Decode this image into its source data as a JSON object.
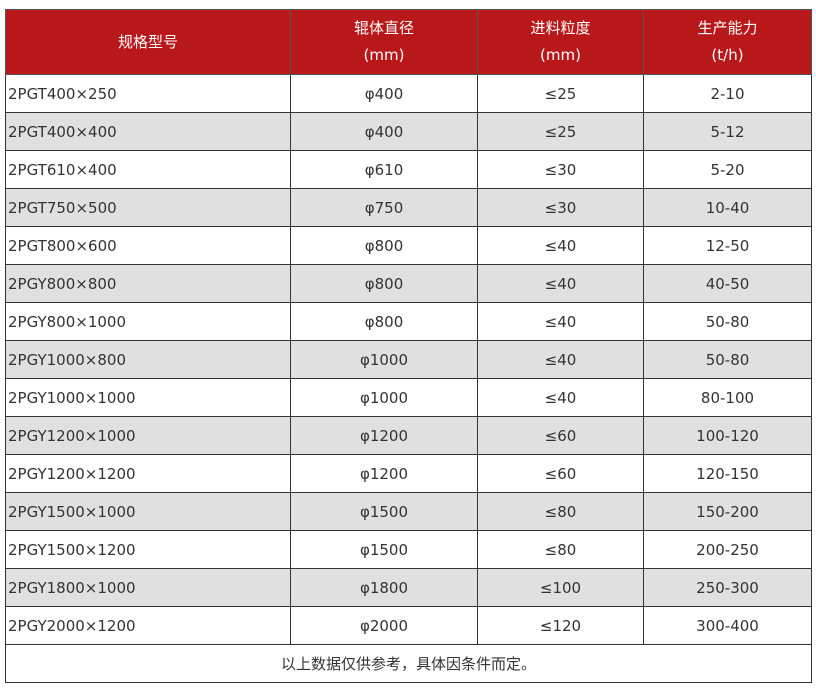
{
  "header": {
    "model": "规格型号",
    "roller_diameter": "辊体直径",
    "roller_unit": "(mm)",
    "feed_size": "进料粒度",
    "feed_unit": "(mm)",
    "capacity": "生产能力",
    "capacity_unit": "(t/h)"
  },
  "rows": [
    [
      "2PGT400×250",
      "φ400",
      "≤25",
      "2-10"
    ],
    [
      "2PGT400×400",
      "φ400",
      "≤25",
      "5-12"
    ],
    [
      "2PGT610×400",
      "φ610",
      "≤30",
      "5-20"
    ],
    [
      "2PGT750×500",
      "φ750",
      "≤30",
      "10-40"
    ],
    [
      "2PGT800×600",
      "φ800",
      "≤40",
      "12-50"
    ],
    [
      "2PGY800×800",
      "φ800",
      "≤40",
      "40-50"
    ],
    [
      "2PGY800×1000",
      "φ800",
      "≤40",
      "50-80"
    ],
    [
      "2PGY1000×800",
      "φ1000",
      "≤40",
      "50-80"
    ],
    [
      "2PGY1000×1000",
      "φ1000",
      "≤40",
      "80-100"
    ],
    [
      "2PGY1200×1000",
      "φ1200",
      "≤60",
      "100-120"
    ],
    [
      "2PGY1200×1200",
      "φ1200",
      "≤60",
      "120-150"
    ],
    [
      "2PGY1500×1000",
      "φ1500",
      "≤80",
      "150-200"
    ],
    [
      "2PGY1500×1200",
      "φ1500",
      "≤80",
      "200-250"
    ],
    [
      "2PGY1800×1000",
      "φ1800",
      "≤100",
      "250-300"
    ],
    [
      "2PGY2000×1200",
      "φ2000",
      "≤120",
      "300-400"
    ]
  ],
  "footer": "以上数据仅供参考，具体因条件而定。",
  "colors": {
    "header_bg": "#b9181a",
    "alt_row": "#e0e0e0"
  }
}
